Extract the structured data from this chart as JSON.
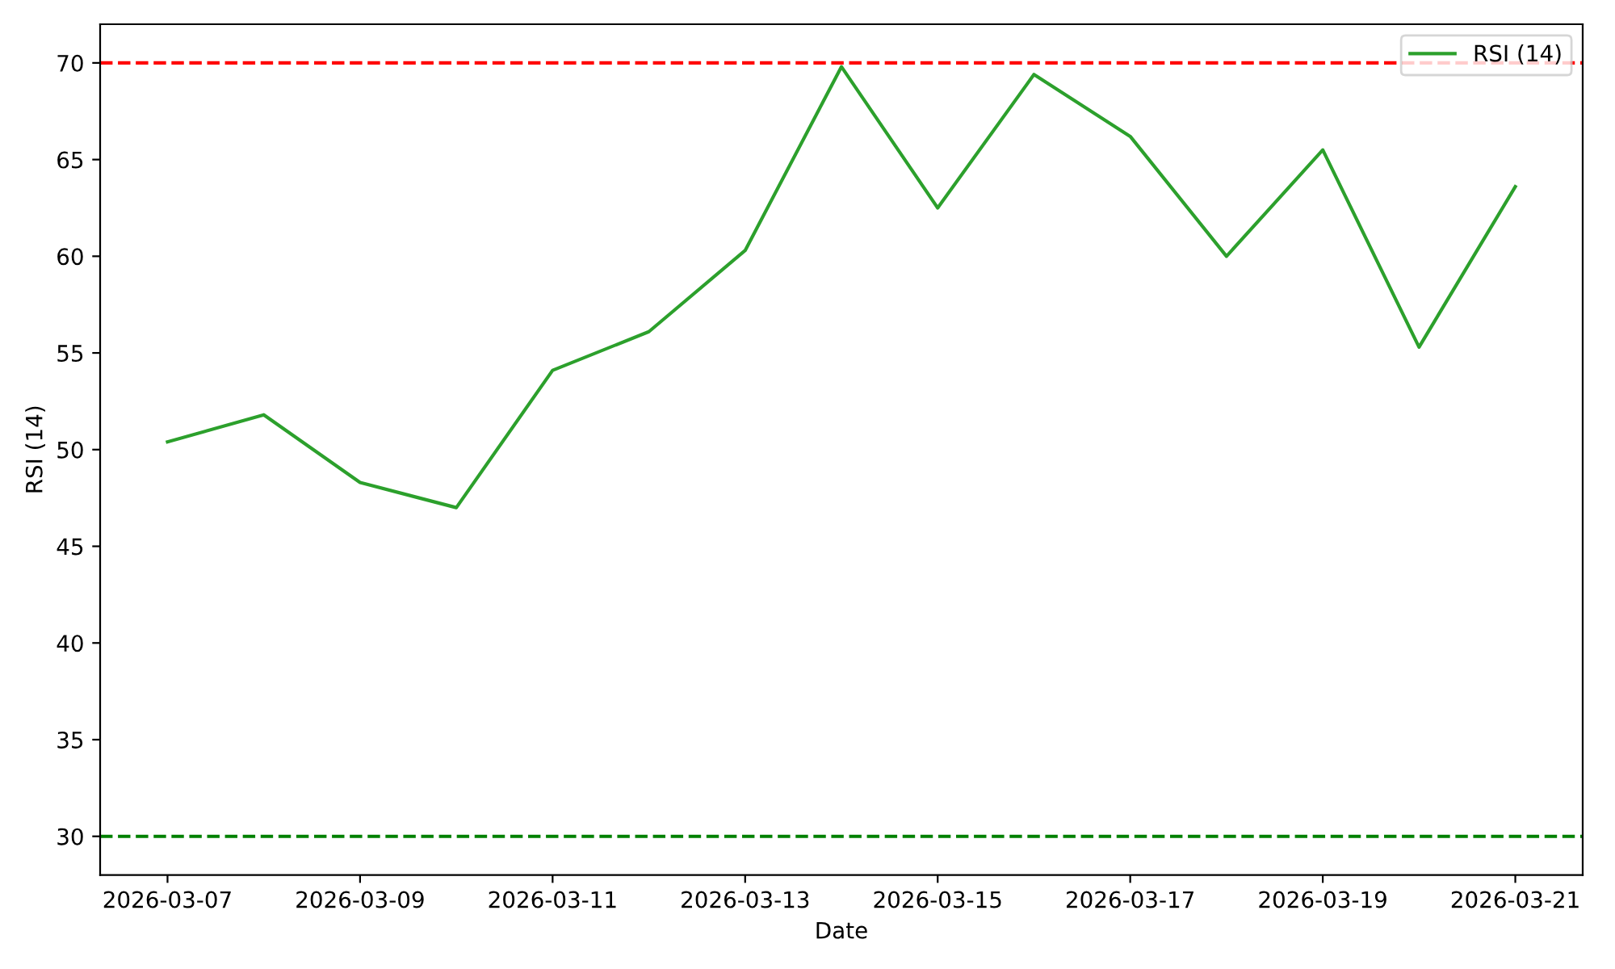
{
  "chart_data": {
    "type": "line",
    "xlabel": "Date",
    "ylabel": "RSI (14)",
    "x": [
      "2026-03-07",
      "2026-03-08",
      "2026-03-09",
      "2026-03-10",
      "2026-03-11",
      "2026-03-12",
      "2026-03-13",
      "2026-03-14",
      "2026-03-15",
      "2026-03-16",
      "2026-03-17",
      "2026-03-18",
      "2026-03-19",
      "2026-03-20",
      "2026-03-21"
    ],
    "series": [
      {
        "name": "RSI (14)",
        "color": "#2ca02c",
        "values": [
          50.4,
          51.8,
          48.3,
          47.0,
          54.1,
          56.1,
          60.3,
          69.8,
          62.5,
          69.4,
          66.2,
          60.0,
          65.5,
          55.3,
          63.6
        ]
      }
    ],
    "xlim": [
      "2026-03-06T07:12",
      "2026-03-21T16:48"
    ],
    "xticks": [
      "2026-03-07",
      "2026-03-09",
      "2026-03-11",
      "2026-03-13",
      "2026-03-15",
      "2026-03-17",
      "2026-03-19",
      "2026-03-21"
    ],
    "ylim": [
      28,
      72
    ],
    "yticks": [
      30,
      35,
      40,
      45,
      50,
      55,
      60,
      65,
      70
    ],
    "ref_lines": [
      {
        "axis": "y",
        "value": 70,
        "color": "#ff0000",
        "line_style": "dashed"
      },
      {
        "axis": "y",
        "value": 30,
        "color": "#008000",
        "line_style": "dashed"
      }
    ],
    "legend": "top right",
    "grid": false,
    "marker": "none",
    "line_style": "solid"
  }
}
